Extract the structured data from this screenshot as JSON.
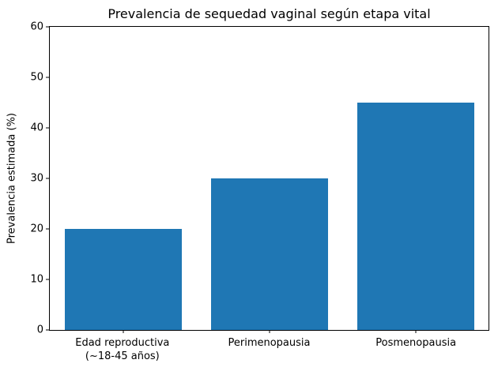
{
  "chart_data": {
    "type": "bar",
    "title": "Prevalencia de sequedad vaginal según etapa vital",
    "xlabel": "",
    "ylabel": "Prevalencia estimada (%)",
    "categories": [
      "Edad reproductiva\n(~18-45 años)",
      "Perimenopausia",
      "Posmenopausia"
    ],
    "values": [
      20,
      30,
      45
    ],
    "ylim": [
      0,
      60
    ],
    "yticks": [
      0,
      10,
      20,
      30,
      40,
      50,
      60
    ],
    "bar_color": "#1f77b4",
    "bar_width_fraction": 0.8,
    "grid": false,
    "legend_position": "none",
    "background_color": "#ffffff",
    "spine_color": "#000000"
  }
}
